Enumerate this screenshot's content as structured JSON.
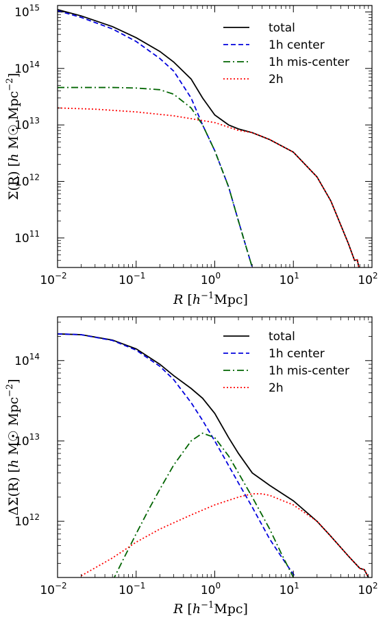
{
  "chart_data": [
    {
      "type": "line",
      "title": "",
      "xlabel": "R [h^-1 Mpc]",
      "ylabel": "Σ(R) [h M☉ Mpc^-2]",
      "xscale": "log",
      "yscale": "log",
      "xlim": [
        0.01,
        100
      ],
      "ylim": [
        30000000000.0,
        1300000000000000.0
      ],
      "x_ticks": [
        0.01,
        0.1,
        1,
        10,
        100
      ],
      "x_tick_labels": [
        {
          "base": "10",
          "exp": "−2"
        },
        {
          "base": "10",
          "exp": "−1"
        },
        {
          "base": "10",
          "exp": "0"
        },
        {
          "base": "10",
          "exp": "1"
        },
        {
          "base": "10",
          "exp": "2"
        }
      ],
      "y_ticks": [
        100000000000.0,
        1000000000000.0,
        10000000000000.0,
        100000000000000.0,
        1000000000000000.0
      ],
      "y_tick_labels": [
        {
          "base": "10",
          "exp": "11"
        },
        {
          "base": "10",
          "exp": "12"
        },
        {
          "base": "10",
          "exp": "13"
        },
        {
          "base": "10",
          "exp": "14"
        },
        {
          "base": "10",
          "exp": "15"
        }
      ],
      "legend": "top-right",
      "grid": false,
      "series": [
        {
          "name": "total",
          "color": "#000000",
          "dash": "solid",
          "x": [
            0.01,
            0.02,
            0.05,
            0.1,
            0.2,
            0.3,
            0.5,
            0.7,
            1,
            1.5,
            2,
            3,
            5,
            10,
            20,
            30,
            50,
            60,
            65,
            70
          ],
          "y": [
            1100000000000000.0,
            850000000000000.0,
            550000000000000.0,
            350000000000000.0,
            200000000000000.0,
            130000000000000.0,
            65000000000000.0,
            30000000000000.0,
            15000000000000.0,
            10000000000000.0,
            8500000000000.0,
            7300000000000.0,
            5500000000000.0,
            3300000000000.0,
            1200000000000.0,
            450000000000.0,
            80000000000.0,
            40000000000.0,
            41000000000.0,
            25000000000.0
          ]
        },
        {
          "name": "1h center",
          "color": "#0000dd",
          "dash": "dashed",
          "x": [
            0.01,
            0.02,
            0.05,
            0.1,
            0.2,
            0.3,
            0.5,
            0.7,
            1,
            1.5,
            2,
            2.5,
            3
          ],
          "y": [
            1050000000000000.0,
            800000000000000.0,
            500000000000000.0,
            300000000000000.0,
            150000000000000.0,
            90000000000000.0,
            30000000000000.0,
            10000000000000.0,
            3500000000000.0,
            800000000000.0,
            200000000000.0,
            70000000000.0,
            30000000000.0
          ]
        },
        {
          "name": "1h mis-center",
          "color": "#006400",
          "dash": "dashdot",
          "x": [
            0.01,
            0.05,
            0.1,
            0.2,
            0.3,
            0.5,
            0.7,
            1,
            1.5,
            2,
            2.5,
            3
          ],
          "y": [
            46000000000000.0,
            46000000000000.0,
            45000000000000.0,
            42000000000000.0,
            35000000000000.0,
            20000000000000.0,
            10000000000000.0,
            3500000000000.0,
            800000000000.0,
            200000000000.0,
            70000000000.0,
            30000000000.0
          ]
        },
        {
          "name": "2h",
          "color": "#ff0000",
          "dash": "dotted",
          "x": [
            0.01,
            0.03,
            0.1,
            0.3,
            1,
            2,
            3,
            5,
            10,
            20,
            30,
            50,
            60,
            65,
            70
          ],
          "y": [
            20000000000000.0,
            19000000000000.0,
            17000000000000.0,
            14500000000000.0,
            11000000000000.0,
            8000000000000.0,
            7300000000000.0,
            5500000000000.0,
            3300000000000.0,
            1200000000000.0,
            450000000000.0,
            80000000000.0,
            40000000000.0,
            41000000000.0,
            25000000000.0
          ]
        }
      ]
    },
    {
      "type": "line",
      "title": "",
      "xlabel": "R [h^-1 Mpc]",
      "ylabel": "ΔΣ(R) [h M☉ Mpc^-2]",
      "xscale": "log",
      "yscale": "log",
      "xlim": [
        0.01,
        100
      ],
      "ylim": [
        200000000000.0,
        350000000000000.0
      ],
      "x_ticks": [
        0.01,
        0.1,
        1,
        10,
        100
      ],
      "x_tick_labels": [
        {
          "base": "10",
          "exp": "−2"
        },
        {
          "base": "10",
          "exp": "−1"
        },
        {
          "base": "10",
          "exp": "0"
        },
        {
          "base": "10",
          "exp": "1"
        },
        {
          "base": "10",
          "exp": "2"
        }
      ],
      "y_ticks": [
        1000000000000.0,
        10000000000000.0,
        100000000000000.0
      ],
      "y_tick_labels": [
        {
          "base": "10",
          "exp": "12"
        },
        {
          "base": "10",
          "exp": "13"
        },
        {
          "base": "10",
          "exp": "14"
        }
      ],
      "legend": "top-right",
      "grid": false,
      "series": [
        {
          "name": "total",
          "color": "#000000",
          "dash": "solid",
          "x": [
            0.01,
            0.02,
            0.05,
            0.1,
            0.2,
            0.3,
            0.5,
            0.7,
            1,
            1.5,
            2,
            3,
            5,
            10,
            20,
            30,
            50,
            70,
            80,
            90
          ],
          "y": [
            215000000000000.0,
            210000000000000.0,
            180000000000000.0,
            140000000000000.0,
            90000000000000.0,
            65000000000000.0,
            45000000000000.0,
            34000000000000.0,
            22000000000000.0,
            11000000000000.0,
            7000000000000.0,
            4000000000000.0,
            2800000000000.0,
            1800000000000.0,
            1000000000000.0,
            650000000000.0,
            370000000000.0,
            260000000000.0,
            250000000000.0,
            200000000000.0
          ]
        },
        {
          "name": "1h center",
          "color": "#0000dd",
          "dash": "dashed",
          "x": [
            0.01,
            0.02,
            0.05,
            0.1,
            0.2,
            0.3,
            0.5,
            0.7,
            1,
            2,
            3,
            5,
            8,
            10,
            12
          ],
          "y": [
            215000000000000.0,
            210000000000000.0,
            178000000000000.0,
            135000000000000.0,
            85000000000000.0,
            58000000000000.0,
            30000000000000.0,
            18000000000000.0,
            10000000000000.0,
            3000000000000.0,
            1500000000000.0,
            600000000000.0,
            300000000000.0,
            220000000000.0,
            160000000000.0
          ]
        },
        {
          "name": "1h mis-center",
          "color": "#006400",
          "dash": "dashdot",
          "x": [
            0.05,
            0.07,
            0.1,
            0.15,
            0.2,
            0.3,
            0.5,
            0.7,
            1,
            1.5,
            2,
            3,
            5,
            7,
            10
          ],
          "y": [
            180000000000.0,
            350000000000.0,
            700000000000.0,
            1500000000000.0,
            2500000000000.0,
            5000000000000.0,
            10000000000000.0,
            12500000000000.0,
            11000000000000.0,
            6500000000000.0,
            4000000000000.0,
            2000000000000.0,
            800000000000.0,
            400000000000.0,
            200000000000.0
          ]
        },
        {
          "name": "2h",
          "color": "#ff0000",
          "dash": "dotted",
          "x": [
            0.02,
            0.05,
            0.1,
            0.2,
            0.5,
            1,
            2,
            3,
            4,
            5,
            10,
            20,
            30,
            50,
            70,
            80,
            90
          ],
          "y": [
            210000000000.0,
            350000000000.0,
            550000000000.0,
            800000000000.0,
            1200000000000.0,
            1600000000000.0,
            2000000000000.0,
            2200000000000.0,
            2200000000000.0,
            2100000000000.0,
            1600000000000.0,
            1000000000000.0,
            650000000000.0,
            370000000000.0,
            260000000000.0,
            250000000000.0,
            200000000000.0
          ]
        }
      ]
    }
  ]
}
